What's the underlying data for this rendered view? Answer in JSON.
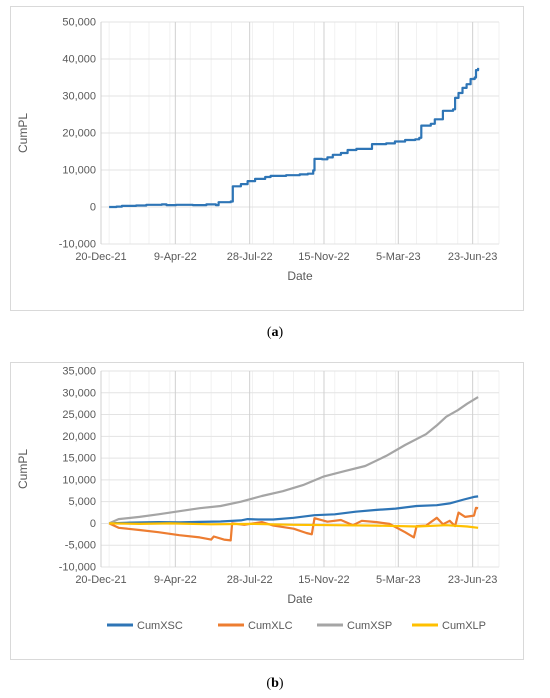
{
  "captions": {
    "a_open": "(",
    "a_letter": "a",
    "a_close": ")",
    "b_open": "(",
    "b_letter": "b",
    "b_close": ")"
  },
  "chart_data": [
    {
      "type": "line",
      "xlabel": "Date",
      "ylabel": "CumPL",
      "x_tick_labels": [
        "20-Dec-21",
        "9-Apr-22",
        "28-Jul-22",
        "15-Nov-22",
        "5-Mar-23",
        "23-Jun-23"
      ],
      "xlim": [
        "2021-12-20",
        "2023-08-01"
      ],
      "ylim": [
        -10000,
        50000
      ],
      "y_tick_step": 10000,
      "grid": true,
      "colors": {
        "grid": "#e3e3e3",
        "series": "#2e75b6"
      },
      "series": [
        {
          "points": [
            [
              "2022-01-01",
              0
            ],
            [
              "2022-01-12",
              100
            ],
            [
              "2022-01-20",
              300
            ],
            [
              "2022-02-10",
              400
            ],
            [
              "2022-02-25",
              600
            ],
            [
              "2022-03-20",
              700
            ],
            [
              "2022-03-27",
              500
            ],
            [
              "2022-04-10",
              600
            ],
            [
              "2022-05-05",
              500
            ],
            [
              "2022-05-25",
              700
            ],
            [
              "2022-06-08",
              500
            ],
            [
              "2022-06-12",
              1300
            ],
            [
              "2022-06-30",
              1500
            ],
            [
              "2022-07-03",
              5600
            ],
            [
              "2022-07-15",
              6200
            ],
            [
              "2022-07-25",
              7000
            ],
            [
              "2022-08-05",
              7600
            ],
            [
              "2022-08-20",
              8100
            ],
            [
              "2022-08-28",
              8400
            ],
            [
              "2022-09-20",
              8600
            ],
            [
              "2022-10-10",
              8800
            ],
            [
              "2022-10-22",
              9000
            ],
            [
              "2022-10-30",
              9900
            ],
            [
              "2022-11-01",
              13000
            ],
            [
              "2022-11-12",
              12900
            ],
            [
              "2022-11-20",
              13400
            ],
            [
              "2022-11-28",
              14100
            ],
            [
              "2022-12-10",
              14600
            ],
            [
              "2022-12-20",
              15400
            ],
            [
              "2023-01-02",
              15700
            ],
            [
              "2023-01-25",
              17000
            ],
            [
              "2023-02-15",
              17200
            ],
            [
              "2023-02-28",
              17700
            ],
            [
              "2023-03-15",
              18100
            ],
            [
              "2023-03-30",
              18300
            ],
            [
              "2023-04-05",
              18700
            ],
            [
              "2023-04-08",
              22000
            ],
            [
              "2023-04-22",
              22500
            ],
            [
              "2023-04-28",
              23700
            ],
            [
              "2023-05-10",
              26000
            ],
            [
              "2023-05-25",
              26400
            ],
            [
              "2023-05-28",
              29500
            ],
            [
              "2023-06-02",
              30800
            ],
            [
              "2023-06-08",
              32200
            ],
            [
              "2023-06-14",
              33200
            ],
            [
              "2023-06-20",
              34600
            ],
            [
              "2023-06-26",
              35000
            ],
            [
              "2023-06-28",
              37000
            ],
            [
              "2023-07-01",
              37600
            ]
          ]
        }
      ]
    },
    {
      "type": "line",
      "xlabel": "Date",
      "ylabel": "CumPL",
      "x_tick_labels": [
        "20-Dec-21",
        "9-Apr-22",
        "28-Jul-22",
        "15-Nov-22",
        "5-Mar-23",
        "23-Jun-23"
      ],
      "xlim": [
        "2021-12-20",
        "2023-08-01"
      ],
      "ylim": [
        -10000,
        35000
      ],
      "y_tick_step": 5000,
      "grid": true,
      "legend": "bottom",
      "colors": {
        "grid": "#e3e3e3"
      },
      "series": [
        {
          "name": "CumXSC",
          "color": "#2e75b6",
          "points": [
            [
              "2022-01-01",
              0
            ],
            [
              "2022-02-01",
              200
            ],
            [
              "2022-03-15",
              300
            ],
            [
              "2022-04-15",
              250
            ],
            [
              "2022-05-15",
              350
            ],
            [
              "2022-06-15",
              450
            ],
            [
              "2022-07-15",
              700
            ],
            [
              "2022-07-25",
              1000
            ],
            [
              "2022-08-10",
              900
            ],
            [
              "2022-09-01",
              900
            ],
            [
              "2022-10-01",
              1300
            ],
            [
              "2022-11-01",
              1900
            ],
            [
              "2022-12-01",
              2100
            ],
            [
              "2023-01-01",
              2700
            ],
            [
              "2023-02-01",
              3100
            ],
            [
              "2023-03-01",
              3400
            ],
            [
              "2023-04-01",
              4000
            ],
            [
              "2023-05-01",
              4200
            ],
            [
              "2023-05-20",
              4600
            ],
            [
              "2023-06-10",
              5500
            ],
            [
              "2023-06-25",
              6100
            ],
            [
              "2023-07-01",
              6200
            ]
          ]
        },
        {
          "name": "CumXLC",
          "color": "#ed7d31",
          "points": [
            [
              "2022-01-01",
              0
            ],
            [
              "2022-01-15",
              -1000
            ],
            [
              "2022-02-15",
              -1500
            ],
            [
              "2022-03-15",
              -2000
            ],
            [
              "2022-04-15",
              -2700
            ],
            [
              "2022-05-15",
              -3200
            ],
            [
              "2022-06-01",
              -3700
            ],
            [
              "2022-06-05",
              -3000
            ],
            [
              "2022-06-20",
              -3700
            ],
            [
              "2022-06-30",
              -3900
            ],
            [
              "2022-07-02",
              0
            ],
            [
              "2022-07-20",
              -300
            ],
            [
              "2022-08-15",
              300
            ],
            [
              "2022-09-01",
              -500
            ],
            [
              "2022-10-01",
              -1200
            ],
            [
              "2022-10-20",
              -2200
            ],
            [
              "2022-10-28",
              -2500
            ],
            [
              "2022-11-01",
              1200
            ],
            [
              "2022-11-20",
              400
            ],
            [
              "2022-12-10",
              800
            ],
            [
              "2022-12-28",
              -400
            ],
            [
              "2023-01-10",
              600
            ],
            [
              "2023-02-01",
              300
            ],
            [
              "2023-02-20",
              -100
            ],
            [
              "2023-03-15",
              -2000
            ],
            [
              "2023-03-28",
              -3200
            ],
            [
              "2023-04-01",
              -600
            ],
            [
              "2023-04-15",
              -500
            ],
            [
              "2023-05-01",
              1300
            ],
            [
              "2023-05-10",
              -200
            ],
            [
              "2023-05-20",
              600
            ],
            [
              "2023-05-28",
              -600
            ],
            [
              "2023-06-02",
              2500
            ],
            [
              "2023-06-12",
              1500
            ],
            [
              "2023-06-25",
              1800
            ],
            [
              "2023-06-28",
              3600
            ],
            [
              "2023-07-01",
              3500
            ]
          ]
        },
        {
          "name": "CumXSP",
          "color": "#a5a5a5",
          "points": [
            [
              "2022-01-01",
              0
            ],
            [
              "2022-01-15",
              1000
            ],
            [
              "2022-02-15",
              1500
            ],
            [
              "2022-03-15",
              2100
            ],
            [
              "2022-04-15",
              2800
            ],
            [
              "2022-05-15",
              3500
            ],
            [
              "2022-06-15",
              4000
            ],
            [
              "2022-07-15",
              5000
            ],
            [
              "2022-08-15",
              6300
            ],
            [
              "2022-09-15",
              7400
            ],
            [
              "2022-10-15",
              8800
            ],
            [
              "2022-11-15",
              10800
            ],
            [
              "2022-12-15",
              12000
            ],
            [
              "2023-01-15",
              13200
            ],
            [
              "2023-02-15",
              15500
            ],
            [
              "2023-03-15",
              18000
            ],
            [
              "2023-04-15",
              20500
            ],
            [
              "2023-05-01",
              22500
            ],
            [
              "2023-05-15",
              24500
            ],
            [
              "2023-06-01",
              26000
            ],
            [
              "2023-06-15",
              27500
            ],
            [
              "2023-07-01",
              29000
            ]
          ]
        },
        {
          "name": "CumXLP",
          "color": "#ffc000",
          "points": [
            [
              "2022-01-01",
              0
            ],
            [
              "2022-02-15",
              -100
            ],
            [
              "2022-04-01",
              0
            ],
            [
              "2022-06-01",
              -200
            ],
            [
              "2022-08-01",
              -100
            ],
            [
              "2022-10-01",
              -300
            ],
            [
              "2022-12-01",
              -400
            ],
            [
              "2023-02-01",
              -500
            ],
            [
              "2023-04-01",
              -700
            ],
            [
              "2023-05-15",
              -400
            ],
            [
              "2023-06-15",
              -700
            ],
            [
              "2023-07-01",
              -1000
            ]
          ]
        }
      ]
    }
  ]
}
